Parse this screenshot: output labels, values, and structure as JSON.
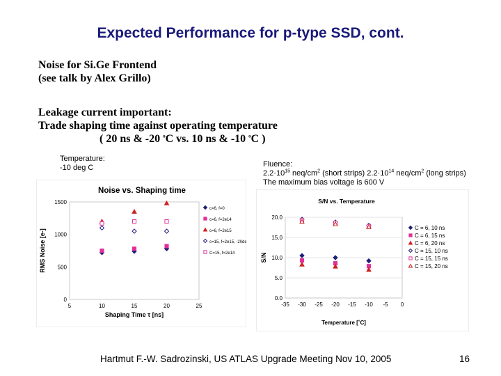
{
  "title": "Expected Performance for p-type SSD, cont.",
  "noise": {
    "line1": "Noise for Si.Ge Frontend",
    "line2": "(see talk by Alex Grillo)"
  },
  "leakage": {
    "line1": "Leakage current important:",
    "line2": "Trade shaping time against operating temperature",
    "line3_a": "( 20 ns & -20 ",
    "line3_b": "o",
    "line3_c": "C vs. 10 ns & -10 ",
    "line3_d": "o",
    "line3_e": "C )"
  },
  "left_caption": {
    "line1": "Temperature:",
    "line2": "-10 deg C"
  },
  "right_caption": {
    "l1": "Fluence:",
    "a": "2.2·10",
    "a_exp": "15",
    "b": " neq/cm",
    "b_exp": "2",
    "c": " (short strips) 2.2·10",
    "c_exp": "14",
    "d": " neq/cm",
    "d_exp": "2",
    "e": " (long strips)",
    "l3": "The maximum  bias voltage is 600 V"
  },
  "footer": "Hartmut F.-W. Sadrozinski, US ATLAS Upgrade Meeting Nov 10,  2005",
  "page_number": "16",
  "chart_data": [
    {
      "type": "scatter",
      "title": "Noise vs. Shaping time",
      "xlabel": "Shaping Time τ [ns]",
      "ylabel": "RMS Noise [e-]",
      "xlim": [
        5,
        25
      ],
      "ylim": [
        0,
        1500
      ],
      "xticks": [
        "5",
        "10",
        "15",
        "20",
        "25"
      ],
      "yticks": [
        "0",
        "500",
        "1000",
        "1500"
      ],
      "legend_position": "right",
      "series": [
        {
          "name": "c=6, f=0",
          "marker": "diamond",
          "filled": true,
          "color": "#1f1f7a",
          "x": [
            10,
            15,
            20
          ],
          "y": [
            720,
            740,
            780
          ]
        },
        {
          "name": "c=6, f=2e14",
          "marker": "square",
          "filled": true,
          "color": "#e0309a",
          "x": [
            10,
            15,
            20
          ],
          "y": [
            750,
            780,
            820
          ]
        },
        {
          "name": "c=6, f=2e15",
          "marker": "triangle",
          "filled": true,
          "color": "#d02020",
          "x": [
            10,
            15,
            20
          ],
          "y": [
            1200,
            1350,
            1480
          ]
        },
        {
          "name": "c=15, f=2e15, -20deg",
          "marker": "diamond",
          "filled": false,
          "color": "#1f1f7a",
          "x": [
            10,
            15,
            20
          ],
          "y": [
            1100,
            1050,
            1050
          ]
        },
        {
          "name": "C=15, f=2e14",
          "marker": "square",
          "filled": false,
          "color": "#e0309a",
          "x": [
            10,
            15,
            20
          ],
          "y": [
            1170,
            1200,
            1200
          ]
        }
      ]
    },
    {
      "type": "scatter",
      "title": "S/N vs. Temperature",
      "xlabel": "Temperature [˚C]",
      "ylabel": "S/N",
      "xlim": [
        -35,
        0
      ],
      "ylim": [
        0,
        20
      ],
      "xticks": [
        "-35",
        "-30",
        "-25",
        "-20",
        "-15",
        "-10",
        "-5",
        "0"
      ],
      "yticks": [
        "0.0",
        "5.0",
        "10.0",
        "15.0",
        "20.0"
      ],
      "legend_position": "right",
      "series": [
        {
          "name": "C = 6, 10 ns",
          "marker": "diamond",
          "filled": true,
          "color": "#1f1f7a",
          "x": [
            -30,
            -20,
            -10
          ],
          "y": [
            10.5,
            10.0,
            9.2
          ]
        },
        {
          "name": "C = 6, 15 ns",
          "marker": "square",
          "filled": true,
          "color": "#e0309a",
          "x": [
            -30,
            -20,
            -10
          ],
          "y": [
            9.3,
            8.6,
            7.9
          ]
        },
        {
          "name": "C = 6, 20 ns",
          "marker": "triangle",
          "filled": true,
          "color": "#d02020",
          "x": [
            -30,
            -20,
            -10
          ],
          "y": [
            8.3,
            7.8,
            7.0
          ]
        },
        {
          "name": "C = 15, 10 ns",
          "marker": "diamond",
          "filled": false,
          "color": "#1f1f7a",
          "x": [
            -30,
            -20,
            -10
          ],
          "y": [
            19.5,
            18.8,
            18.0
          ]
        },
        {
          "name": "C = 15, 15 ns",
          "marker": "square",
          "filled": false,
          "color": "#e0309a",
          "x": [
            -30,
            -20,
            -10
          ],
          "y": [
            19.2,
            18.6,
            17.8
          ]
        },
        {
          "name": "C = 15, 20 ns",
          "marker": "triangle",
          "filled": false,
          "color": "#d02020",
          "x": [
            -30,
            -20,
            -10
          ],
          "y": [
            18.9,
            18.3,
            17.6
          ]
        }
      ]
    }
  ]
}
